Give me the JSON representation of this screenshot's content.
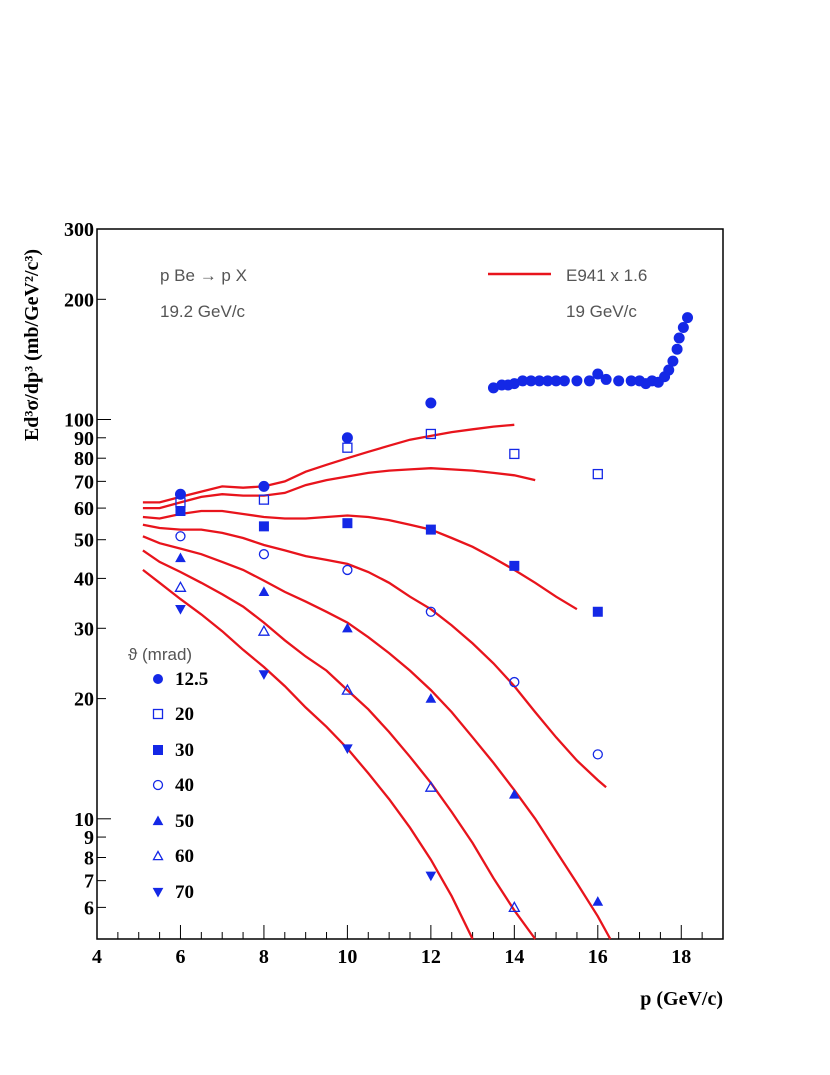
{
  "chart_data": {
    "type": "scatter",
    "xlabel": "p (GeV/c)",
    "ylabel": "Ed³σ/dp³  (mb/GeV²/c³)",
    "xlim": [
      4,
      19
    ],
    "ylim": [
      5,
      300
    ],
    "yscale": "log",
    "x_ticks": [
      4,
      6,
      8,
      10,
      12,
      14,
      16,
      18
    ],
    "y_ticks": [
      {
        "v": 6,
        "label": "6"
      },
      {
        "v": 7,
        "label": "7"
      },
      {
        "v": 8,
        "label": "8"
      },
      {
        "v": 9,
        "label": "9"
      },
      {
        "v": 10,
        "label": "10"
      },
      {
        "v": 20,
        "label": "20"
      },
      {
        "v": 30,
        "label": "30"
      },
      {
        "v": 40,
        "label": "40"
      },
      {
        "v": 50,
        "label": "50"
      },
      {
        "v": 60,
        "label": "60"
      },
      {
        "v": 70,
        "label": "70"
      },
      {
        "v": 80,
        "label": "80"
      },
      {
        "v": 90,
        "label": "90"
      },
      {
        "v": 100,
        "label": "100"
      },
      {
        "v": 200,
        "label": "200"
      },
      {
        "v": 300,
        "label": "300"
      }
    ],
    "annotations": {
      "reaction": "p Be → p X",
      "beam": "19.2 GeV/c",
      "model_beam": "19 GeV/c"
    },
    "legend_title": "ϑ (mrad)",
    "legend_position": "left",
    "line_legend": {
      "label": "E941 x 1.6",
      "color": "#e8141c"
    },
    "marker_color": "#1428e6",
    "series": [
      {
        "name": "12.5",
        "marker": "circle-filled",
        "x": [
          6,
          8,
          10,
          12,
          13.5,
          13.7,
          13.85,
          14,
          14.2,
          14.4,
          14.6,
          14.8,
          15.0,
          15.2,
          15.5,
          15.8,
          16,
          16.2,
          16.5,
          16.8,
          17.0,
          17.15,
          17.3,
          17.45,
          17.6,
          17.7,
          17.8,
          17.9,
          17.95,
          18.05,
          18.15
        ],
        "y": [
          65,
          68,
          90,
          110,
          120,
          122,
          122,
          123,
          125,
          125,
          125,
          125,
          125,
          125,
          125,
          125,
          130,
          126,
          125,
          125,
          125,
          123,
          125,
          124,
          128,
          133,
          140,
          150,
          160,
          170,
          180
        ]
      },
      {
        "name": "20",
        "marker": "square-open",
        "x": [
          6,
          8,
          10,
          12,
          14,
          16
        ],
        "y": [
          62,
          63,
          85,
          92,
          82,
          73
        ]
      },
      {
        "name": "30",
        "marker": "square-filled",
        "x": [
          6,
          8,
          10,
          12,
          14,
          16
        ],
        "y": [
          59,
          54,
          55,
          53,
          43,
          33
        ]
      },
      {
        "name": "40",
        "marker": "circle-open",
        "x": [
          6,
          8,
          10,
          12,
          14,
          16
        ],
        "y": [
          51,
          46,
          42,
          33,
          22,
          14.5
        ]
      },
      {
        "name": "50",
        "marker": "triangle-filled",
        "x": [
          6,
          8,
          10,
          12,
          14,
          16
        ],
        "y": [
          45,
          37,
          30,
          20,
          11.5,
          6.2
        ]
      },
      {
        "name": "60",
        "marker": "triangle-open",
        "x": [
          6,
          8,
          10,
          12,
          14
        ],
        "y": [
          38,
          29.5,
          21,
          12,
          6
        ]
      },
      {
        "name": "70",
        "marker": "triangle-down-filled",
        "x": [
          6,
          8,
          10,
          12
        ],
        "y": [
          33.5,
          23,
          15,
          7.2
        ]
      }
    ],
    "model_curves": [
      {
        "x": [
          5.1,
          5.5,
          6,
          6.5,
          7,
          7.5,
          8,
          8.5,
          9,
          9.5,
          10,
          10.5,
          11,
          11.5,
          12,
          12.5,
          13,
          13.5,
          14
        ],
        "y": [
          62,
          62,
          64,
          66,
          68,
          67.5,
          68,
          70,
          74,
          77,
          80,
          83,
          86,
          89,
          91,
          93,
          94.5,
          96,
          97
        ]
      },
      {
        "x": [
          5.1,
          5.5,
          6,
          6.5,
          7,
          7.5,
          8,
          8.5,
          9,
          9.5,
          10,
          10.5,
          11,
          11.5,
          12,
          12.5,
          13,
          13.5,
          14,
          14.5
        ],
        "y": [
          60,
          60,
          62,
          64,
          65,
          64.5,
          64.5,
          65.5,
          68.5,
          70.5,
          72,
          73.5,
          74.5,
          75,
          75.5,
          75,
          74.5,
          73.5,
          72.5,
          70.5
        ]
      },
      {
        "x": [
          5.1,
          5.5,
          6,
          6.5,
          7,
          7.5,
          8,
          8.5,
          9,
          9.5,
          10,
          10.5,
          11,
          11.5,
          12,
          12.5,
          13,
          13.5,
          14,
          14.5,
          15,
          15.5
        ],
        "y": [
          57,
          56.5,
          58,
          59,
          59,
          58,
          57,
          56.5,
          56.5,
          57,
          57.5,
          57,
          56,
          54.5,
          53,
          50.5,
          48,
          45,
          42,
          39,
          36,
          33.5
        ]
      },
      {
        "x": [
          5.1,
          5.5,
          6,
          6.5,
          7,
          7.5,
          8,
          8.5,
          9,
          9.5,
          10,
          10.5,
          11,
          11.5,
          12,
          12.5,
          13,
          13.5,
          14,
          14.5,
          15,
          15.5,
          16,
          16.2
        ],
        "y": [
          54.5,
          53.5,
          53,
          53,
          52,
          50.5,
          48.5,
          47,
          45.5,
          44.5,
          43.5,
          41.5,
          39,
          36,
          33.5,
          30.5,
          27.5,
          24.5,
          21.5,
          18.5,
          16,
          14,
          12.5,
          12
        ]
      },
      {
        "x": [
          5.1,
          5.5,
          6,
          6.5,
          7,
          7.5,
          8,
          8.5,
          9,
          9.5,
          10,
          10.5,
          11,
          11.5,
          12,
          12.5,
          13,
          13.5,
          14,
          14.5,
          15,
          15.5,
          16,
          16.3
        ],
        "y": [
          51,
          49,
          47.5,
          46,
          44,
          42,
          39.5,
          37,
          35,
          33,
          31,
          28.5,
          26,
          23.5,
          21,
          18.5,
          16,
          13.8,
          11.8,
          10,
          8.3,
          6.9,
          5.7,
          5.0
        ]
      },
      {
        "x": [
          5.1,
          5.5,
          6,
          6.5,
          7,
          7.5,
          8,
          8.5,
          9,
          9.5,
          10,
          10.5,
          11,
          11.5,
          12,
          12.5,
          13,
          13.5,
          14,
          14.5
        ],
        "y": [
          47,
          44,
          41.5,
          39,
          36.5,
          34,
          31,
          28,
          25.5,
          23.5,
          21,
          18.8,
          16.5,
          14.3,
          12.3,
          10.4,
          8.7,
          7.1,
          5.9,
          5.0
        ]
      },
      {
        "x": [
          5.1,
          5.5,
          6,
          6.5,
          7,
          7.5,
          8,
          8.5,
          9,
          9.5,
          10,
          10.5,
          11,
          11.5,
          12,
          12.5,
          13
        ],
        "y": [
          42,
          39,
          35.5,
          32.5,
          29.5,
          26.5,
          24,
          21.5,
          19,
          17,
          15,
          13,
          11.2,
          9.5,
          7.9,
          6.4,
          5.0
        ]
      }
    ]
  }
}
